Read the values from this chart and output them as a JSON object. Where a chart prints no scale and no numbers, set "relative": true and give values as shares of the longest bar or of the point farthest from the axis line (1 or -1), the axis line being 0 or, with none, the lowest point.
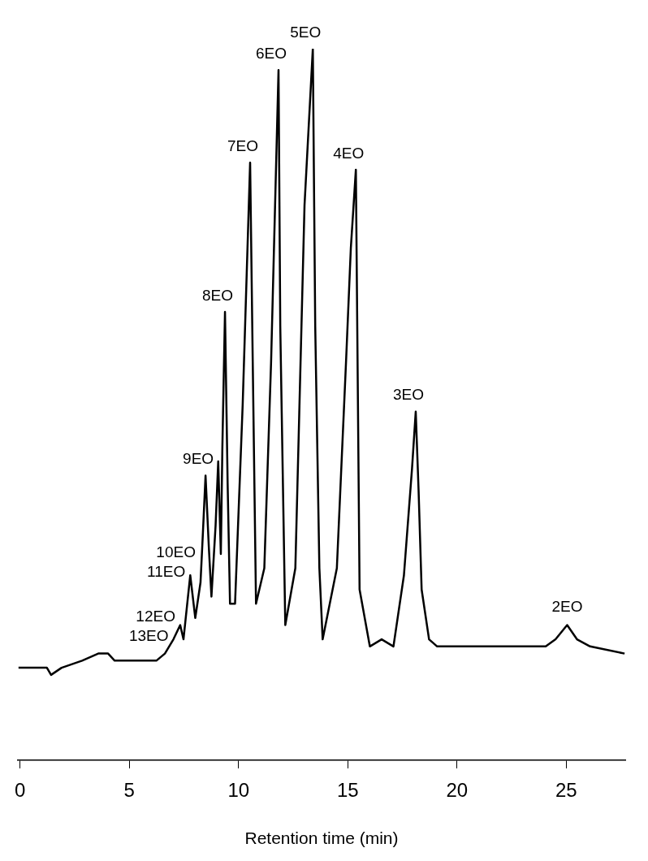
{
  "chart_data": {
    "type": "line",
    "relative": true,
    "xlabel": "Retention time (min)",
    "xlim": [
      -0.1,
      27.7
    ],
    "xticks": [
      0,
      5,
      10,
      15,
      20,
      25
    ],
    "grid": false,
    "legend": false,
    "marker": "none",
    "line_style": "solid",
    "series": [
      {
        "color": "#000000",
        "x": [
          -0.07,
          1.23,
          1.42,
          1.9,
          2.84,
          3.58,
          4.03,
          4.33,
          6.24,
          6.63,
          7.02,
          7.33,
          7.48,
          7.79,
          8.02,
          8.26,
          8.37,
          8.49,
          8.64,
          8.76,
          8.95,
          9.07,
          9.19,
          9.26,
          9.38,
          9.5,
          9.61,
          9.84,
          10.19,
          10.53,
          10.65,
          10.8,
          11.18,
          11.49,
          11.83,
          11.91,
          12.14,
          12.6,
          13.02,
          13.4,
          13.51,
          13.7,
          13.85,
          14.5,
          14.92,
          15.14,
          15.37,
          15.54,
          16.01,
          16.55,
          17.09,
          17.57,
          17.94,
          18.11,
          18.24,
          18.38,
          18.72,
          19.09,
          19.73,
          20.56,
          21.62,
          22.67,
          24.06,
          24.51,
          25.04,
          25.49,
          26.09,
          27.67
        ],
        "values": [
          0.13,
          0.13,
          0.12,
          0.13,
          0.14,
          0.15,
          0.15,
          0.14,
          0.14,
          0.15,
          0.17,
          0.19,
          0.17,
          0.26,
          0.2,
          0.25,
          0.32,
          0.4,
          0.3,
          0.23,
          0.33,
          0.42,
          0.29,
          0.44,
          0.63,
          0.39,
          0.22,
          0.22,
          0.5,
          0.84,
          0.56,
          0.22,
          0.27,
          0.56,
          0.97,
          0.61,
          0.19,
          0.27,
          0.78,
          1.0,
          0.61,
          0.27,
          0.17,
          0.27,
          0.56,
          0.72,
          0.83,
          0.24,
          0.16,
          0.17,
          0.16,
          0.26,
          0.41,
          0.49,
          0.38,
          0.24,
          0.17,
          0.16,
          0.16,
          0.16,
          0.16,
          0.16,
          0.16,
          0.17,
          0.19,
          0.17,
          0.16,
          0.15
        ]
      }
    ],
    "annotations": [
      {
        "text": "13EO",
        "x": 7.02,
        "y": 0.17
      },
      {
        "text": "12EO",
        "x": 7.33,
        "y": 0.19
      },
      {
        "text": "11EO",
        "x": 7.79,
        "y": 0.26
      },
      {
        "text": "10EO",
        "x": 8.26,
        "y": 0.25
      },
      {
        "text": "9EO",
        "x": 8.49,
        "y": 0.4
      },
      {
        "text": "8EO",
        "x": 9.38,
        "y": 0.63
      },
      {
        "text": "7EO",
        "x": 10.53,
        "y": 0.84
      },
      {
        "text": "6EO",
        "x": 11.83,
        "y": 0.97
      },
      {
        "text": "5EO",
        "x": 13.4,
        "y": 1.0
      },
      {
        "text": "4EO",
        "x": 15.37,
        "y": 0.83
      },
      {
        "text": "3EO",
        "x": 18.11,
        "y": 0.49
      },
      {
        "text": "2EO",
        "x": 25.04,
        "y": 0.19
      }
    ]
  }
}
